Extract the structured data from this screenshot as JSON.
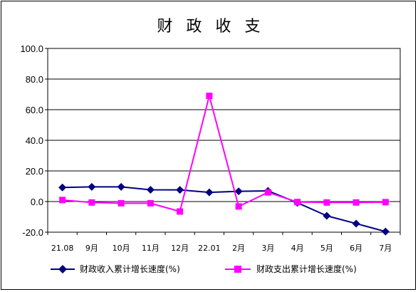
{
  "chart_data": {
    "type": "line",
    "title": "财 政 收 支",
    "categories": [
      "21.08",
      "9月",
      "10月",
      "11月",
      "12月",
      "22.01",
      "2月",
      "3月",
      "4月",
      "5月",
      "6月",
      "7月"
    ],
    "ylim": [
      -20,
      100
    ],
    "yticks": [
      "-20.0",
      "0.0",
      "20.0",
      "40.0",
      "60.0",
      "80.0",
      "100.0"
    ],
    "grid": true,
    "legend_position": "bottom",
    "series": [
      {
        "name": "财政收入累计增长速度(%)",
        "color": "#000080",
        "marker": "diamond",
        "values": [
          9.2,
          9.6,
          9.6,
          7.7,
          7.6,
          6.0,
          6.7,
          7.0,
          -0.8,
          -9.3,
          -14.4,
          -19.6
        ]
      },
      {
        "name": "财政支出累计增长速度(%)",
        "color": "#FF00FF",
        "marker": "square",
        "values": [
          1.0,
          -0.6,
          -1.1,
          -1.1,
          -6.5,
          69.0,
          -3.2,
          6.0,
          -0.3,
          -0.6,
          -0.6,
          -0.4
        ]
      }
    ]
  }
}
